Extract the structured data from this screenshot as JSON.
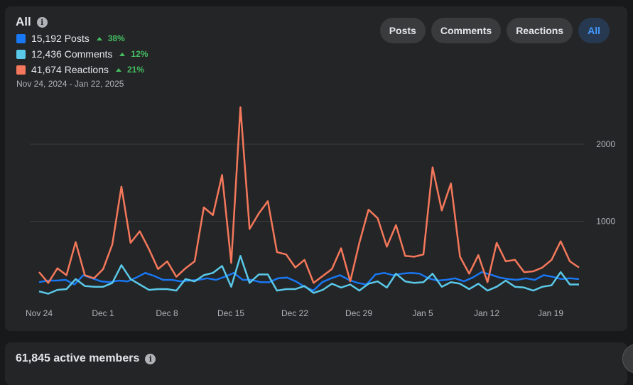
{
  "card": {
    "title": "All",
    "date_range": "Nov 24, 2024 - Jan 22, 2025",
    "legend": [
      {
        "value": "15,192",
        "label": "Posts",
        "change": "38%",
        "color": "#1877f2"
      },
      {
        "value": "12,436",
        "label": "Comments",
        "change": "12%",
        "color": "#5ac8e8"
      },
      {
        "value": "41,674",
        "label": "Reactions",
        "change": "21%",
        "color": "#f4785b"
      }
    ],
    "filters": [
      "Posts",
      "Comments",
      "Reactions",
      "All"
    ],
    "active_filter": "All"
  },
  "members_card": {
    "title": "61,845 active members"
  },
  "chart_data": {
    "type": "line",
    "x_ticks": [
      "Nov 24",
      "Dec 1",
      "Dec 8",
      "Dec 15",
      "Dec 22",
      "Dec 29",
      "Jan 5",
      "Jan 12",
      "Jan 19"
    ],
    "y_ticks": [
      1000,
      2000
    ],
    "ylim": [
      -250,
      2500
    ],
    "grid": true,
    "series": [
      {
        "name": "Posts",
        "color": "#1877f2",
        "values": [
          210,
          230,
          230,
          240,
          180,
          300,
          260,
          220,
          210,
          230,
          220,
          270,
          330,
          290,
          240,
          240,
          220,
          230,
          240,
          260,
          240,
          280,
          330,
          240,
          240,
          210,
          210,
          260,
          270,
          220,
          150,
          100,
          210,
          260,
          300,
          240,
          200,
          180,
          310,
          330,
          300,
          320,
          330,
          320,
          260,
          230,
          240,
          260,
          220,
          270,
          340,
          310,
          270,
          250,
          240,
          260,
          240,
          300,
          280,
          250,
          260,
          250
        ]
      },
      {
        "name": "Comments",
        "color": "#5ac8e8",
        "values": [
          90,
          60,
          110,
          120,
          250,
          160,
          150,
          150,
          200,
          430,
          250,
          180,
          110,
          120,
          120,
          100,
          250,
          220,
          300,
          330,
          420,
          150,
          550,
          200,
          310,
          310,
          100,
          120,
          120,
          160,
          70,
          110,
          190,
          140,
          180,
          100,
          190,
          220,
          140,
          320,
          220,
          200,
          210,
          320,
          150,
          210,
          190,
          120,
          190,
          100,
          150,
          230,
          150,
          140,
          100,
          150,
          170,
          340,
          180,
          180
        ]
      },
      {
        "name": "Reactions",
        "color": "#f4785b",
        "values": [
          340,
          200,
          390,
          300,
          730,
          300,
          260,
          380,
          700,
          1450,
          720,
          870,
          640,
          380,
          480,
          280,
          390,
          480,
          1180,
          1080,
          1600,
          460,
          2480,
          900,
          1100,
          1260,
          600,
          570,
          400,
          500,
          200,
          290,
          380,
          650,
          220,
          720,
          1150,
          1040,
          670,
          950,
          550,
          540,
          570,
          1700,
          1140,
          1490,
          540,
          320,
          560,
          210,
          720,
          480,
          500,
          340,
          350,
          400,
          500,
          740,
          480,
          400
        ]
      }
    ]
  }
}
